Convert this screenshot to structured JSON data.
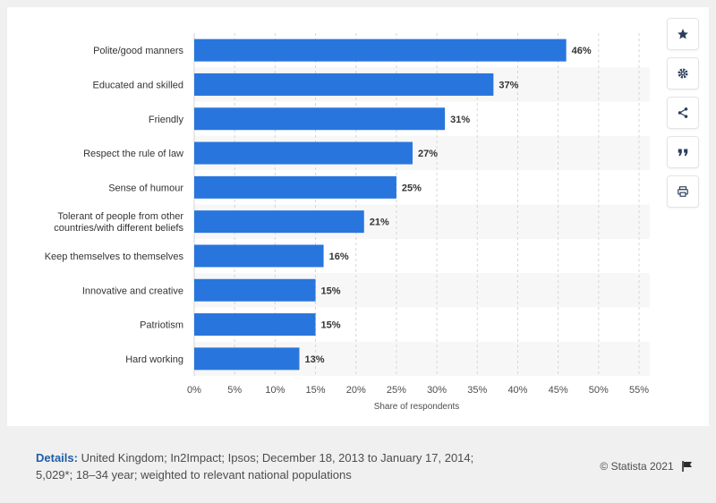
{
  "chart_data": {
    "type": "bar",
    "orientation": "horizontal",
    "categories": [
      "Polite/good manners",
      "Educated and skilled",
      "Friendly",
      "Respect the rule of law",
      "Sense of humour",
      "Tolerant of people from other countries/with different beliefs",
      "Keep themselves to themselves",
      "Innovative and creative",
      "Patriotism",
      "Hard working"
    ],
    "category_lines": [
      [
        "Polite/good manners"
      ],
      [
        "Educated and skilled"
      ],
      [
        "Friendly"
      ],
      [
        "Respect the rule of law"
      ],
      [
        "Sense of humour"
      ],
      [
        "Tolerant of people from other",
        "countries/with different beliefs"
      ],
      [
        "Keep themselves to themselves"
      ],
      [
        "Innovative and creative"
      ],
      [
        "Patriotism"
      ],
      [
        "Hard working"
      ]
    ],
    "values": [
      46,
      37,
      31,
      27,
      25,
      21,
      16,
      15,
      15,
      13
    ],
    "value_labels": [
      "46%",
      "37%",
      "31%",
      "27%",
      "25%",
      "21%",
      "16%",
      "15%",
      "15%",
      "13%"
    ],
    "xlabel": "Share of respondents",
    "ylabel": "",
    "xlim": [
      0,
      55
    ],
    "xticks": [
      0,
      5,
      10,
      15,
      20,
      25,
      30,
      35,
      40,
      45,
      50,
      55
    ],
    "xtick_labels": [
      "0%",
      "5%",
      "10%",
      "15%",
      "20%",
      "25%",
      "30%",
      "35%",
      "40%",
      "45%",
      "50%",
      "55%"
    ],
    "grid": true,
    "bar_color": "#2876dd"
  },
  "toolbar": {
    "buttons": [
      "star-icon",
      "gear-icon",
      "share-icon",
      "quote-icon",
      "print-icon"
    ]
  },
  "footer": {
    "details_label": "Details:",
    "details_text": "United Kingdom; In2Impact; Ipsos; December 18, 2013 to January 17, 2014; 5,029*; 18–34 year; weighted to relevant national populations",
    "copyright": "© Statista 2021"
  }
}
